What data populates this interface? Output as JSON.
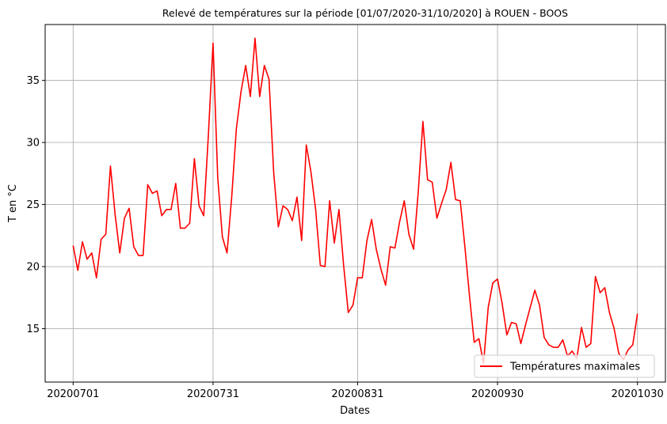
{
  "chart_data": {
    "type": "line",
    "title": "Relevé de températures sur la période [01/07/2020-31/10/2020] à ROUEN - BOOS",
    "xlabel": "Dates",
    "ylabel": "T en °C",
    "x_ticks": [
      {
        "index": 0,
        "label": "20200701"
      },
      {
        "index": 30,
        "label": "20200731"
      },
      {
        "index": 61,
        "label": "20200831"
      },
      {
        "index": 91,
        "label": "20200930"
      },
      {
        "index": 121,
        "label": "20201030"
      }
    ],
    "y_ticks": [
      15,
      20,
      25,
      30,
      35
    ],
    "xlim": [
      -6,
      127
    ],
    "ylim": [
      10.7,
      39.5
    ],
    "grid": true,
    "legend_position": "bottom-right",
    "series": [
      {
        "name": "Températures maximales",
        "color": "#ff0000",
        "values": [
          21.7,
          19.7,
          22.0,
          20.6,
          21.1,
          19.1,
          22.2,
          22.6,
          28.1,
          24.2,
          21.1,
          23.9,
          24.7,
          21.6,
          20.9,
          20.9,
          26.6,
          25.9,
          26.1,
          24.1,
          24.6,
          24.6,
          26.7,
          23.1,
          23.1,
          23.5,
          28.7,
          24.9,
          24.1,
          30.6,
          38.0,
          27.2,
          22.4,
          21.1,
          25.6,
          31.1,
          34.1,
          36.2,
          33.7,
          38.4,
          33.7,
          36.2,
          35.1,
          27.6,
          23.2,
          24.9,
          24.6,
          23.7,
          25.6,
          22.1,
          29.8,
          27.6,
          24.6,
          20.1,
          20.0,
          25.3,
          21.9,
          24.6,
          20.1,
          16.3,
          16.9,
          19.1,
          19.1,
          22.1,
          23.8,
          21.4,
          19.8,
          18.5,
          21.6,
          21.5,
          23.6,
          25.3,
          22.6,
          21.4,
          26.0,
          31.7,
          27.0,
          26.8,
          23.9,
          25.1,
          26.2,
          28.4,
          25.4,
          25.3,
          21.6,
          17.6,
          13.9,
          14.2,
          12.2,
          16.7,
          18.7,
          19.0,
          17.0,
          14.5,
          15.5,
          15.4,
          13.8,
          15.3,
          16.7,
          18.1,
          16.9,
          14.3,
          13.7,
          13.5,
          13.5,
          14.1,
          12.8,
          13.2,
          12.6,
          15.1,
          13.5,
          13.8,
          19.2,
          17.9,
          18.3,
          16.3,
          15.0,
          13.0,
          12.5,
          13.3,
          13.7,
          16.2
        ]
      }
    ]
  }
}
